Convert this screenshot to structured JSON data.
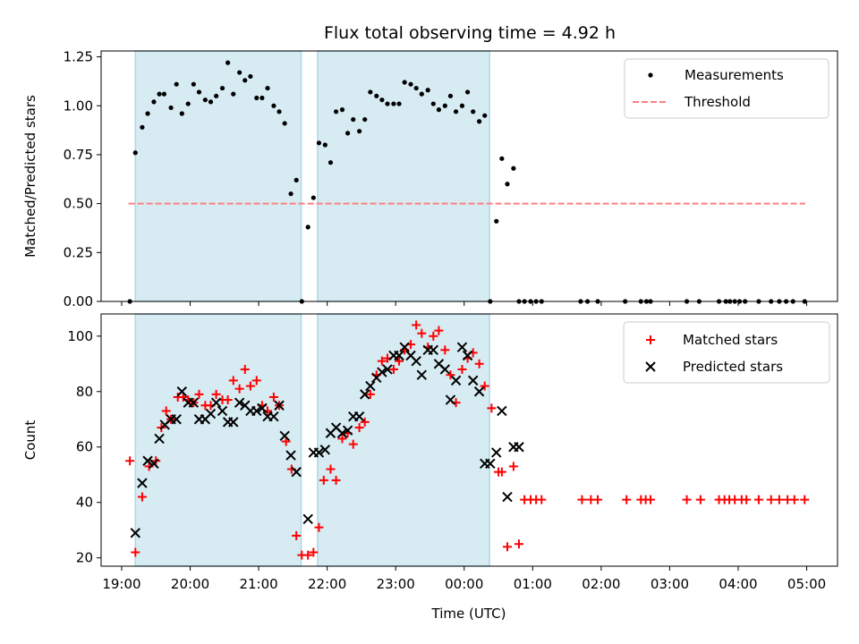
{
  "title": "Flux total observing time = 4.92 h",
  "x_axis": {
    "label": "Time (UTC)",
    "ticks": [
      {
        "t": 19,
        "label": "19:00"
      },
      {
        "t": 20,
        "label": "20:00"
      },
      {
        "t": 21,
        "label": "21:00"
      },
      {
        "t": 22,
        "label": "22:00"
      },
      {
        "t": 23,
        "label": "23:00"
      },
      {
        "t": 24,
        "label": "00:00"
      },
      {
        "t": 25,
        "label": "01:00"
      },
      {
        "t": 26,
        "label": "02:00"
      },
      {
        "t": 27,
        "label": "03:00"
      },
      {
        "t": 28,
        "label": "04:00"
      },
      {
        "t": 29,
        "label": "05:00"
      }
    ]
  },
  "chart_data": [
    {
      "type": "scatter",
      "ylabel": "Matched/Predicted stars",
      "xlim": [
        18.7,
        29.45
      ],
      "ylim": [
        0,
        1.28
      ],
      "yticks": [
        {
          "v": 0,
          "label": "0.00"
        },
        {
          "v": 0.25,
          "label": "0.25"
        },
        {
          "v": 0.5,
          "label": "0.50"
        },
        {
          "v": 0.75,
          "label": "0.75"
        },
        {
          "v": 1.0,
          "label": "1.00"
        },
        {
          "v": 1.25,
          "label": "1.25"
        }
      ],
      "shaded_intervals": [
        [
          19.2,
          21.62
        ],
        [
          21.86,
          24.37
        ]
      ],
      "threshold": {
        "name": "Threshold",
        "value": 0.5,
        "x_range": [
          19.1,
          28.98
        ],
        "color": "#ff7f7f"
      },
      "legend": {
        "placement": "top-right",
        "entries": [
          "Measurements",
          "Threshold"
        ]
      },
      "series": [
        {
          "name": "Measurements",
          "color": "#000000",
          "x": [
            19.12,
            19.2,
            19.3,
            19.38,
            19.47,
            19.55,
            19.62,
            19.72,
            19.8,
            19.88,
            19.97,
            20.05,
            20.13,
            20.22,
            20.3,
            20.38,
            20.47,
            20.55,
            20.63,
            20.72,
            20.8,
            20.88,
            20.97,
            21.05,
            21.13,
            21.22,
            21.3,
            21.38,
            21.47,
            21.55,
            21.63,
            21.72,
            21.8,
            21.88,
            21.97,
            22.05,
            22.13,
            22.22,
            22.3,
            22.38,
            22.47,
            22.55,
            22.63,
            22.72,
            22.8,
            22.88,
            22.97,
            23.05,
            23.13,
            23.22,
            23.3,
            23.38,
            23.47,
            23.55,
            23.63,
            23.72,
            23.8,
            23.88,
            23.97,
            24.05,
            24.13,
            24.22,
            24.3,
            24.38,
            24.47,
            24.55,
            24.63,
            24.72,
            24.8,
            24.88,
            24.97,
            25.05,
            25.13,
            25.7,
            25.8,
            25.95,
            26.35,
            26.58,
            26.66,
            26.72,
            27.25,
            27.43,
            27.72,
            27.82,
            27.88,
            27.95,
            28.02,
            28.1,
            28.3,
            28.48,
            28.6,
            28.7,
            28.8,
            28.97
          ],
          "y": [
            0,
            0.76,
            0.89,
            0.96,
            1.02,
            1.06,
            1.06,
            0.99,
            1.11,
            0.96,
            1.01,
            1.11,
            1.07,
            1.03,
            1.02,
            1.05,
            1.09,
            1.22,
            1.06,
            1.17,
            1.13,
            1.15,
            1.04,
            1.04,
            1.09,
            1.0,
            0.97,
            0.91,
            0.55,
            0.62,
            0,
            0.38,
            0.53,
            0.81,
            0.8,
            0.71,
            0.97,
            0.98,
            0.86,
            0.93,
            0.87,
            0.93,
            1.07,
            1.05,
            1.03,
            1.01,
            1.01,
            1.01,
            1.12,
            1.11,
            1.09,
            1.06,
            1.08,
            1.01,
            0.98,
            1.0,
            1.05,
            0.97,
            1.0,
            1.07,
            0.97,
            0.92,
            0.95,
            0,
            0.41,
            0.73,
            0.6,
            0.68,
            0,
            0,
            0,
            0,
            0,
            0,
            0,
            0,
            0,
            0,
            0,
            0,
            0,
            0,
            0,
            0,
            0,
            0,
            0,
            0,
            0,
            0,
            0,
            0,
            0,
            0
          ]
        }
      ]
    },
    {
      "type": "scatter",
      "ylabel": "Count",
      "xlim": [
        18.7,
        29.45
      ],
      "ylim": [
        17,
        108
      ],
      "yticks": [
        {
          "v": 20,
          "label": "20"
        },
        {
          "v": 40,
          "label": "40"
        },
        {
          "v": 60,
          "label": "60"
        },
        {
          "v": 80,
          "label": "80"
        },
        {
          "v": 100,
          "label": "100"
        }
      ],
      "shaded_intervals": [
        [
          19.2,
          21.62
        ],
        [
          21.86,
          24.37
        ]
      ],
      "legend": {
        "placement": "top-right",
        "entries": [
          "Matched stars",
          "Predicted stars"
        ]
      },
      "series": [
        {
          "name": "Matched stars",
          "color": "#ff0000",
          "marker": "plus",
          "x": [
            19.12,
            19.2,
            19.3,
            19.4,
            19.5,
            19.58,
            19.65,
            19.72,
            19.82,
            19.9,
            19.97,
            20.05,
            20.13,
            20.22,
            20.3,
            20.38,
            20.47,
            20.55,
            20.63,
            20.72,
            20.8,
            20.88,
            20.97,
            21.05,
            21.13,
            21.22,
            21.3,
            21.4,
            21.48,
            21.55,
            21.63,
            21.72,
            21.8,
            21.88,
            21.95,
            22.05,
            22.13,
            22.22,
            22.3,
            22.38,
            22.47,
            22.55,
            22.63,
            22.72,
            22.8,
            22.88,
            22.97,
            23.05,
            23.13,
            23.22,
            23.3,
            23.38,
            23.47,
            23.55,
            23.63,
            23.72,
            23.8,
            23.88,
            23.97,
            24.05,
            24.13,
            24.22,
            24.3,
            24.4,
            24.5,
            24.55,
            24.63,
            24.72,
            24.8,
            24.88,
            24.97,
            25.05,
            25.13,
            25.72,
            25.85,
            25.95,
            26.37,
            26.58,
            26.65,
            26.72,
            27.25,
            27.45,
            27.72,
            27.8,
            27.87,
            27.95,
            28.05,
            28.12,
            28.3,
            28.48,
            28.6,
            28.72,
            28.82,
            28.97
          ],
          "y": [
            55,
            22,
            42,
            53,
            55,
            67,
            73,
            70,
            78,
            78,
            77,
            76,
            79,
            75,
            75,
            79,
            77,
            77,
            84,
            81,
            88,
            82,
            84,
            75,
            73,
            78,
            75,
            62,
            52,
            28,
            21,
            21,
            22,
            31,
            48,
            52,
            48,
            63,
            65,
            61,
            67,
            69,
            79,
            86,
            91,
            92,
            88,
            91,
            95,
            97,
            104,
            101,
            96,
            100,
            102,
            95,
            86,
            76,
            88,
            92,
            94,
            90,
            82,
            74,
            51,
            51,
            24,
            53,
            25,
            41,
            41,
            41,
            41,
            41,
            41,
            41,
            41,
            41,
            41,
            41,
            41,
            41,
            41,
            41,
            41,
            41,
            41,
            41,
            41,
            41,
            41,
            41,
            41,
            41
          ]
        },
        {
          "name": "Predicted stars",
          "color": "#000000",
          "marker": "x",
          "x": [
            19.2,
            19.3,
            19.38,
            19.47,
            19.55,
            19.63,
            19.72,
            19.8,
            19.88,
            19.97,
            20.05,
            20.13,
            20.22,
            20.3,
            20.38,
            20.47,
            20.55,
            20.63,
            20.72,
            20.8,
            20.88,
            20.97,
            21.05,
            21.13,
            21.22,
            21.3,
            21.38,
            21.47,
            21.55,
            21.72,
            21.8,
            21.88,
            21.97,
            22.05,
            22.13,
            22.22,
            22.3,
            22.38,
            22.47,
            22.55,
            22.63,
            22.72,
            22.8,
            22.88,
            22.97,
            23.05,
            23.13,
            23.22,
            23.3,
            23.38,
            23.47,
            23.55,
            23.63,
            23.72,
            23.8,
            23.88,
            23.97,
            24.05,
            24.13,
            24.22,
            24.3,
            24.38,
            24.47,
            24.55,
            24.63,
            24.72,
            24.8
          ],
          "y": [
            29,
            47,
            55,
            54,
            63,
            68,
            70,
            70,
            80,
            76,
            76,
            70,
            70,
            72,
            76,
            73,
            69,
            69,
            76,
            75,
            73,
            73,
            74,
            71,
            71,
            75,
            64,
            57,
            51,
            34,
            58,
            58,
            59,
            65,
            67,
            65,
            66,
            71,
            71,
            79,
            82,
            85,
            87,
            88,
            93,
            93,
            96,
            93,
            91,
            86,
            95,
            95,
            90,
            88,
            77,
            84,
            96,
            93,
            84,
            80,
            54,
            54,
            58,
            73,
            42,
            60,
            60
          ]
        }
      ]
    }
  ]
}
